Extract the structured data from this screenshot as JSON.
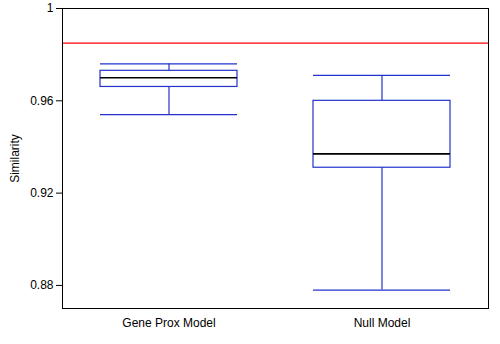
{
  "chart_data": {
    "type": "box",
    "categories": [
      "Gene Prox Model",
      "Null Model"
    ],
    "boxes": [
      {
        "whisker_low": 0.954,
        "q1": 0.966,
        "median": 0.97,
        "q3": 0.973,
        "whisker_high": 0.976
      },
      {
        "whisker_low": 0.878,
        "q1": 0.931,
        "median": 0.937,
        "q3": 0.96,
        "whisker_high": 0.971
      }
    ],
    "color": "#2233cc",
    "median_color": "#000000",
    "reference_line": {
      "value": 0.985,
      "color": "#ff0000"
    },
    "y_label": "Similarity",
    "ylim": [
      0.87,
      1
    ],
    "yticks": [
      0.88,
      0.92,
      0.96,
      1
    ],
    "grid": false
  }
}
